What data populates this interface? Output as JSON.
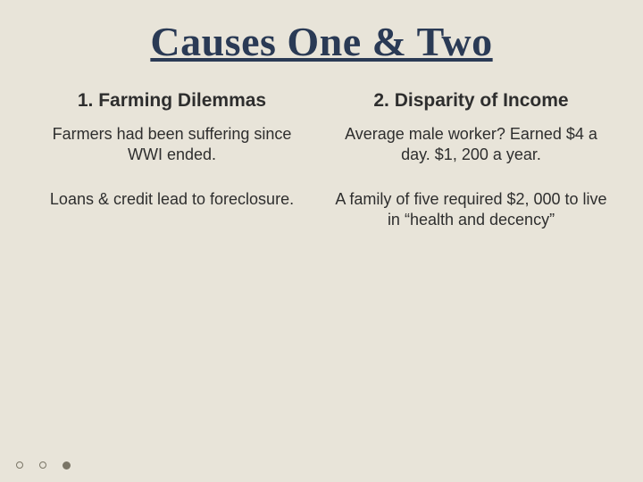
{
  "slide": {
    "title": "Causes One & Two",
    "background_color": "#e8e4d9",
    "title_color": "#2a3a55",
    "title_fontsize": 46,
    "title_font": "Georgia, serif",
    "body_color": "#2e2e2e",
    "body_fontsize": 18,
    "heading_fontsize": 21,
    "columns": [
      {
        "heading": "1. Farming Dilemmas",
        "paragraphs": [
          "Farmers had been suffering since WWI ended.",
          "Loans & credit lead to foreclosure."
        ]
      },
      {
        "heading": "2. Disparity of Income",
        "paragraphs": [
          "Average male worker? Earned $4 a day. $1, 200 a year.",
          "A family of five required $2, 000 to live in “health and decency”"
        ]
      }
    ],
    "footer_bullets": {
      "count": 3,
      "filled_index": 2,
      "empty_color": "#7a7566",
      "filled_color": "#7a7566"
    }
  }
}
